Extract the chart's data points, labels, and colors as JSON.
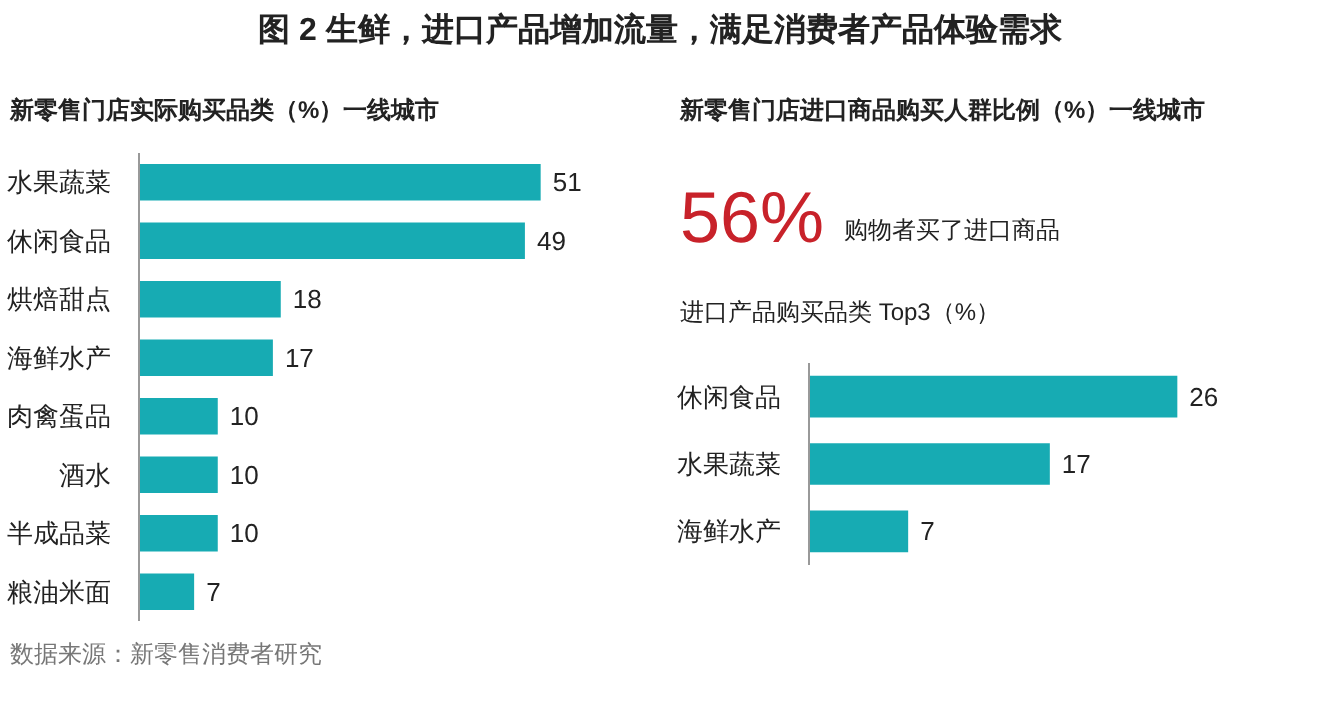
{
  "chart_data": [
    {
      "type": "bar",
      "orientation": "horizontal",
      "title": "图 2  生鲜，进口产品增加流量，满足消费者产品体验需求",
      "subtitle": "新零售门店实际购买品类（%）一线城市",
      "categories": [
        "水果蔬菜",
        "休闲食品",
        "烘焙甜点",
        "海鲜水产",
        "肉禽蛋品",
        "酒水",
        "半成品菜",
        "粮油米面"
      ],
      "values": [
        51,
        49,
        18,
        17,
        10,
        10,
        10,
        7
      ],
      "color": "#17abb3",
      "data_labels": true,
      "tick_labels": "y",
      "annotations": [
        "数据来源：新零售消费者研究"
      ]
    },
    {
      "type": "bar",
      "orientation": "horizontal",
      "title": "新零售门店进口商品购买人群比例（%）一线城市",
      "subtitle": "进口产品购买品类 Top3（%）",
      "categories": [
        "休闲食品",
        "水果蔬菜",
        "海鲜水产"
      ],
      "values": [
        26,
        17,
        7
      ],
      "color": "#17abb3",
      "data_labels": true,
      "tick_labels": "y",
      "annotations": [
        "56%",
        "购物者买了进口商品"
      ]
    }
  ]
}
